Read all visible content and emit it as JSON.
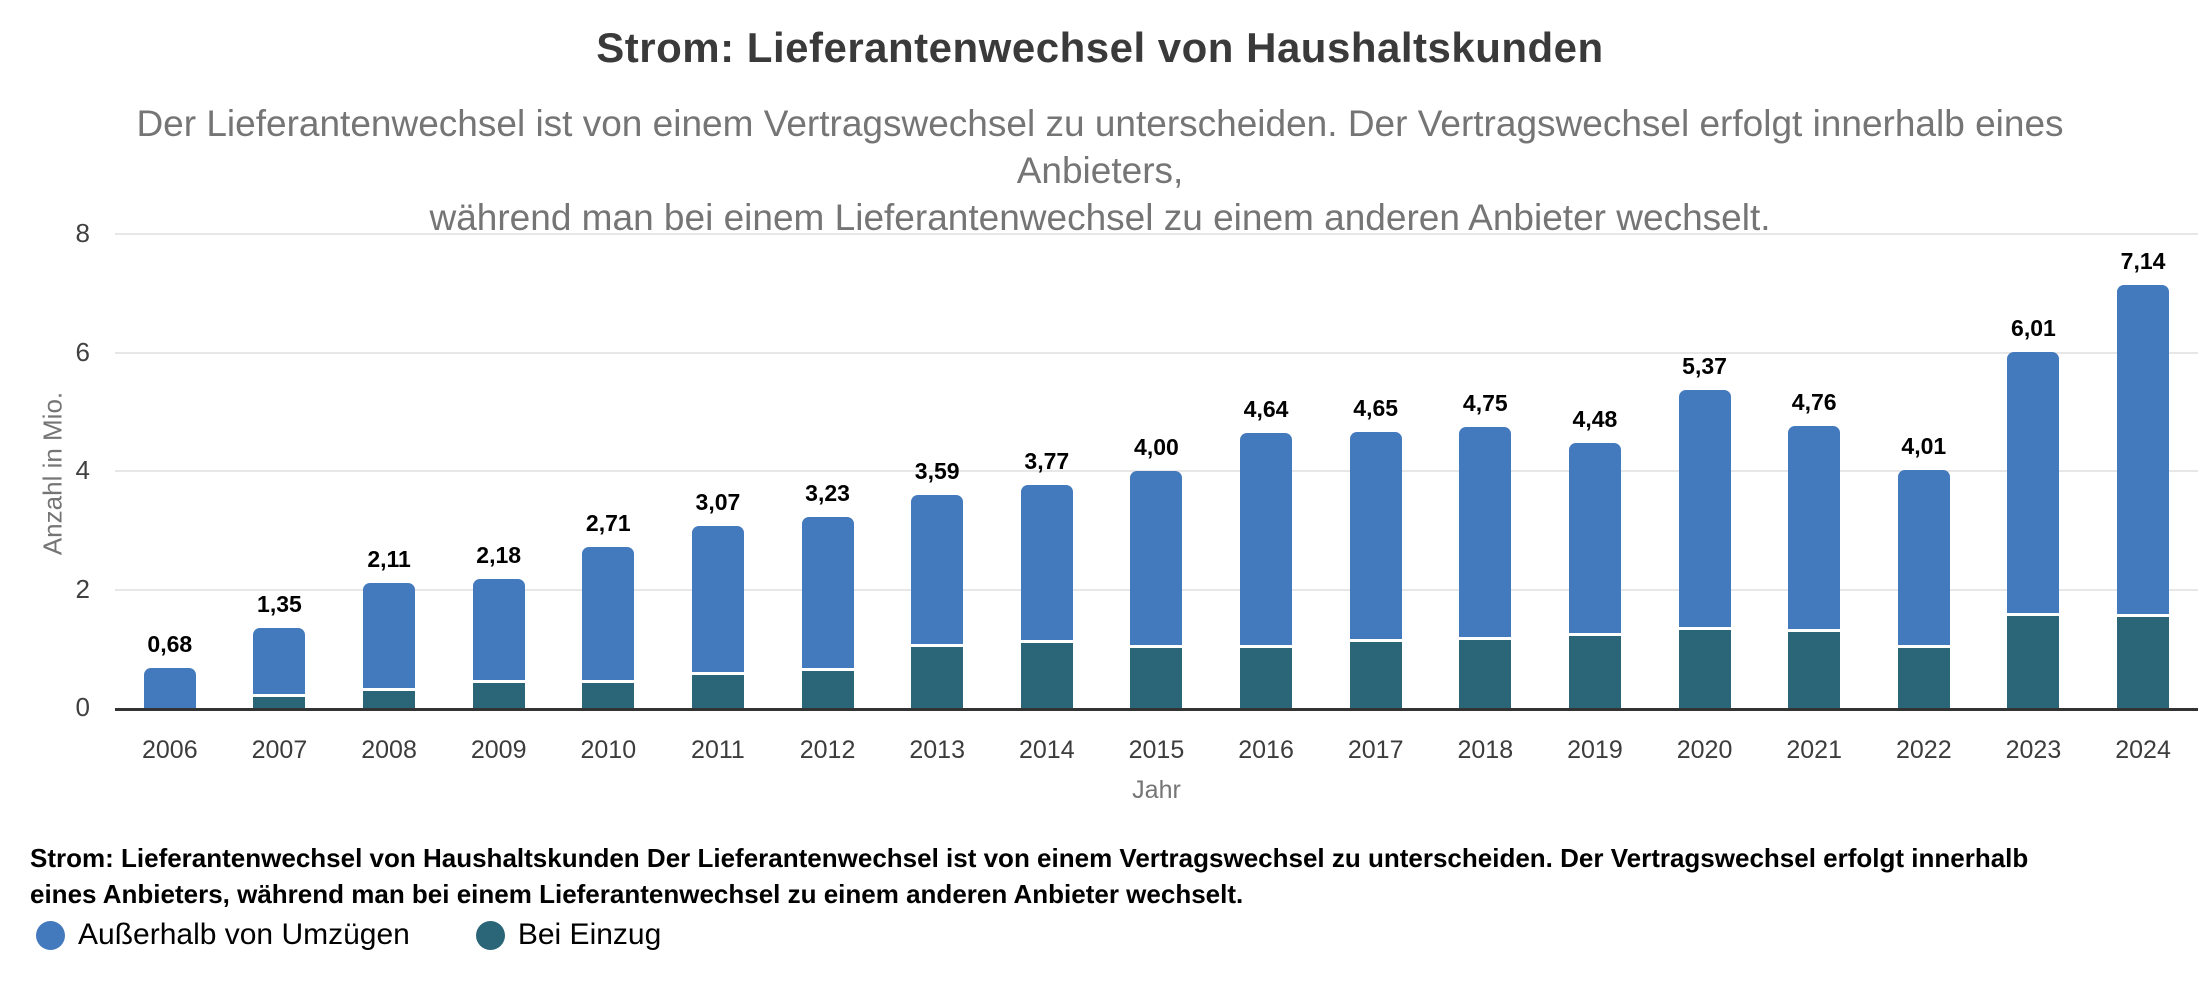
{
  "header": {
    "title": "Strom: Lieferantenwechsel von Haushaltskunden",
    "subtitle_lines": [
      "Der Lieferantenwechsel ist von einem Vertragswechsel zu unterscheiden. Der Vertragswechsel erfolgt innerhalb eines Anbieters,",
      "während man bei einem Lieferantenwechsel zu einem anderen Anbieter wechselt."
    ]
  },
  "chart_data": {
    "type": "bar",
    "stacked": true,
    "title": "Strom: Lieferantenwechsel von Haushaltskunden",
    "xlabel": "Jahr",
    "ylabel": "Anzahl in Mio.",
    "ylim": [
      0,
      8
    ],
    "yticks": [
      8,
      6,
      4,
      2,
      0
    ],
    "grid": true,
    "legend_position": "bottom-left",
    "categories": [
      "2006",
      "2007",
      "2008",
      "2009",
      "2010",
      "2011",
      "2012",
      "2013",
      "2014",
      "2015",
      "2016",
      "2017",
      "2018",
      "2019",
      "2020",
      "2021",
      "2022",
      "2023",
      "2024"
    ],
    "series": [
      {
        "name": "Außerhalb von Umzügen",
        "color": "#4379BD",
        "values": [
          0.68,
          1.16,
          1.82,
          1.76,
          2.28,
          2.52,
          2.6,
          2.56,
          2.67,
          2.98,
          3.62,
          3.54,
          3.6,
          3.27,
          4.05,
          3.47,
          2.99,
          4.46,
          5.6
        ]
      },
      {
        "name": "Bei Einzug",
        "color": "#2A6578",
        "values": [
          0.0,
          0.19,
          0.29,
          0.42,
          0.43,
          0.55,
          0.63,
          1.03,
          1.1,
          1.02,
          1.02,
          1.11,
          1.15,
          1.21,
          1.32,
          1.29,
          1.02,
          1.55,
          1.54
        ]
      }
    ],
    "totals": [
      0.68,
      1.35,
      2.11,
      2.18,
      2.71,
      3.07,
      3.23,
      3.59,
      3.77,
      4.0,
      4.64,
      4.65,
      4.75,
      4.48,
      5.37,
      4.76,
      4.01,
      6.01,
      7.14
    ],
    "total_labels": [
      "0,68",
      "1,35",
      "2,11",
      "2,18",
      "2,71",
      "3,07",
      "3,23",
      "3,59",
      "3,77",
      "4,00",
      "4,64",
      "4,65",
      "4,75",
      "4,48",
      "5,37",
      "4,76",
      "4,01",
      "6,01",
      "7,14"
    ]
  },
  "axes": {
    "y_title": "Anzahl in Mio.",
    "x_title": "Jahr",
    "y_ticks": [
      "8",
      "6",
      "4",
      "2",
      "0"
    ]
  },
  "footer": {
    "text": "Strom: Lieferantenwechsel von Haushaltskunden Der Lieferantenwechsel ist von einem Vertragswechsel zu unterscheiden. Der Vertragswechsel erfolgt innerhalb eines Anbieters, während man bei einem Lieferantenwechsel zu einem anderen Anbieter wechselt."
  },
  "legend": {
    "items": [
      {
        "label": "Außerhalb von Umzügen",
        "color": "#4379BD"
      },
      {
        "label": "Bei Einzug",
        "color": "#2A6578"
      }
    ]
  },
  "colors": {
    "accent_blue": "#4379BD",
    "accent_teal": "#2A6578",
    "title_text": "#3A3A3A",
    "subtitle_text": "#757575",
    "tick_text": "#404040",
    "gridline": "#E7E7E7",
    "axis_line": "#333333"
  }
}
